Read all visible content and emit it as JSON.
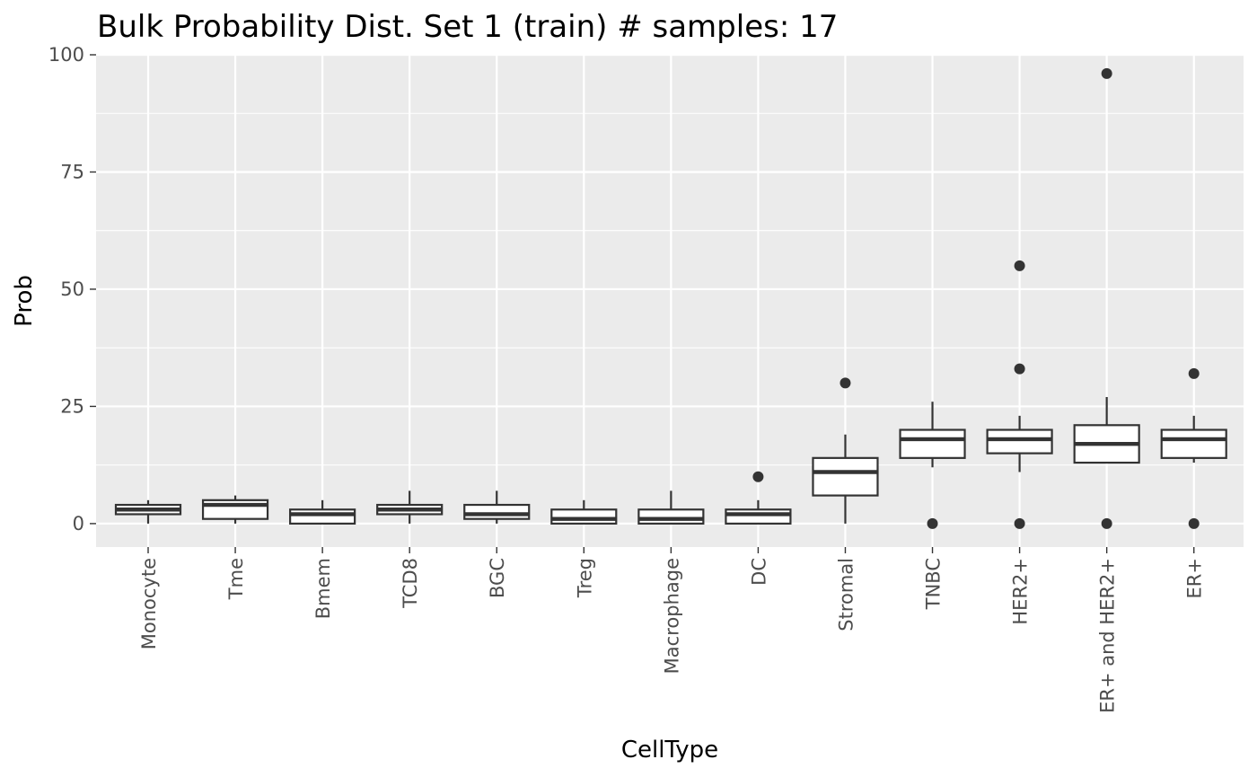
{
  "chart_data": {
    "type": "boxplot",
    "title": "Bulk Probability Dist. Set 1 (train) # samples: 17",
    "xlabel": "CellType",
    "ylabel": "Prob",
    "ylim": [
      -5,
      100
    ],
    "y_ticks": [
      0,
      25,
      50,
      75,
      100
    ],
    "y_tick_labels": [
      "0",
      "25",
      "50",
      "75",
      "100"
    ],
    "y_minor_ticks": [
      12.5,
      37.5,
      62.5,
      87.5
    ],
    "grid": true,
    "legend": "none",
    "categories": [
      "Monocyte",
      "Tme",
      "Bmem",
      "TCD8",
      "BGC",
      "Treg",
      "Macrophage",
      "DC",
      "Stromal",
      "TNBC",
      "HER2+",
      "ER+ and HER2+",
      "ER+"
    ],
    "boxes": [
      {
        "category": "Monocyte",
        "whisker_low": 0,
        "q1": 2,
        "median": 3,
        "q3": 4,
        "whisker_high": 5,
        "outliers": []
      },
      {
        "category": "Tme",
        "whisker_low": 0,
        "q1": 1,
        "median": 4,
        "q3": 5,
        "whisker_high": 6,
        "outliers": []
      },
      {
        "category": "Bmem",
        "whisker_low": 0,
        "q1": 0,
        "median": 2,
        "q3": 3,
        "whisker_high": 5,
        "outliers": []
      },
      {
        "category": "TCD8",
        "whisker_low": 0,
        "q1": 2,
        "median": 3,
        "q3": 4,
        "whisker_high": 7,
        "outliers": []
      },
      {
        "category": "BGC",
        "whisker_low": 0,
        "q1": 1,
        "median": 2,
        "q3": 4,
        "whisker_high": 7,
        "outliers": []
      },
      {
        "category": "Treg",
        "whisker_low": 0,
        "q1": 0,
        "median": 1,
        "q3": 3,
        "whisker_high": 5,
        "outliers": []
      },
      {
        "category": "Macrophage",
        "whisker_low": 0,
        "q1": 0,
        "median": 1,
        "q3": 3,
        "whisker_high": 7,
        "outliers": []
      },
      {
        "category": "DC",
        "whisker_low": 0,
        "q1": 0,
        "median": 2,
        "q3": 3,
        "whisker_high": 5,
        "outliers": [
          10
        ]
      },
      {
        "category": "Stromal",
        "whisker_low": 0,
        "q1": 6,
        "median": 11,
        "q3": 14,
        "whisker_high": 19,
        "outliers": [
          30
        ]
      },
      {
        "category": "TNBC",
        "whisker_low": 12,
        "q1": 14,
        "median": 18,
        "q3": 20,
        "whisker_high": 26,
        "outliers": [
          0
        ]
      },
      {
        "category": "HER2+",
        "whisker_low": 11,
        "q1": 15,
        "median": 18,
        "q3": 20,
        "whisker_high": 23,
        "outliers": [
          0,
          33,
          55
        ]
      },
      {
        "category": "ER+ and HER2+",
        "whisker_low": 13,
        "q1": 13,
        "median": 17,
        "q3": 21,
        "whisker_high": 27,
        "outliers": [
          0,
          96
        ]
      },
      {
        "category": "ER+",
        "whisker_low": 13,
        "q1": 14,
        "median": 18,
        "q3": 20,
        "whisker_high": 23,
        "outliers": [
          0,
          32
        ]
      }
    ]
  }
}
